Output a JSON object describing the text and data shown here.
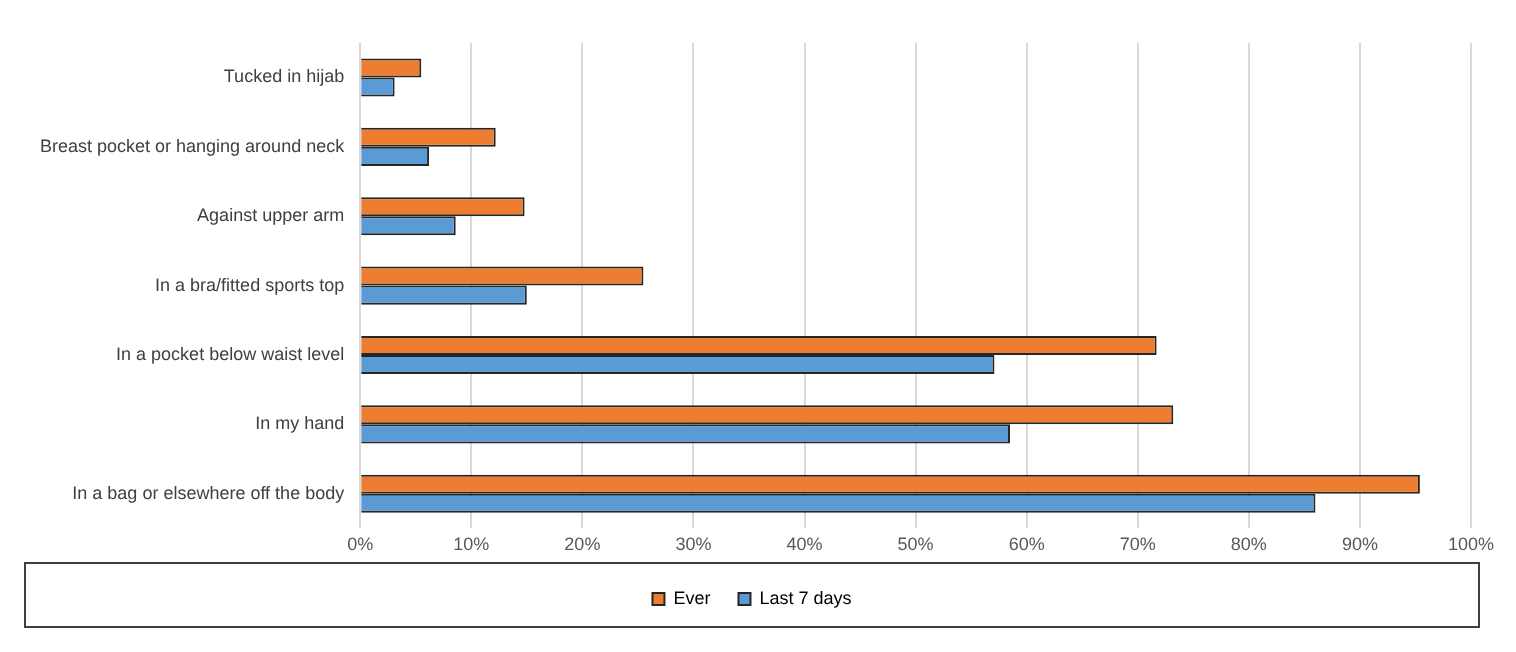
{
  "chart_data": {
    "type": "bar",
    "orientation": "horizontal",
    "categories": [
      "Tucked in hijab",
      "Breast pocket or hanging around neck",
      "Against upper arm",
      "In a bra/fitted sports top",
      "In a pocket below waist level",
      "In my hand",
      "In a bag or elsewhere off the body"
    ],
    "series": [
      {
        "name": "Ever",
        "color": "#ed7d31",
        "values": [
          5.5,
          12.2,
          14.8,
          25.5,
          71.7,
          73.2,
          95.4
        ]
      },
      {
        "name": "Last 7 days",
        "color": "#5b9bd5",
        "values": [
          3.1,
          6.2,
          8.6,
          15.0,
          57.1,
          58.5,
          86.0
        ]
      }
    ],
    "xlim": [
      0,
      100
    ],
    "xticks": [
      {
        "value": 0,
        "label": "0%"
      },
      {
        "value": 10,
        "label": "10%"
      },
      {
        "value": 20,
        "label": "20%"
      },
      {
        "value": 30,
        "label": "30%"
      },
      {
        "value": 40,
        "label": "40%"
      },
      {
        "value": 50,
        "label": "50%"
      },
      {
        "value": 60,
        "label": "60%"
      },
      {
        "value": 70,
        "label": "70%"
      },
      {
        "value": 80,
        "label": "80%"
      },
      {
        "value": 90,
        "label": "90%"
      },
      {
        "value": 100,
        "label": "100%"
      }
    ],
    "grid": "x",
    "legend": "bottom"
  }
}
